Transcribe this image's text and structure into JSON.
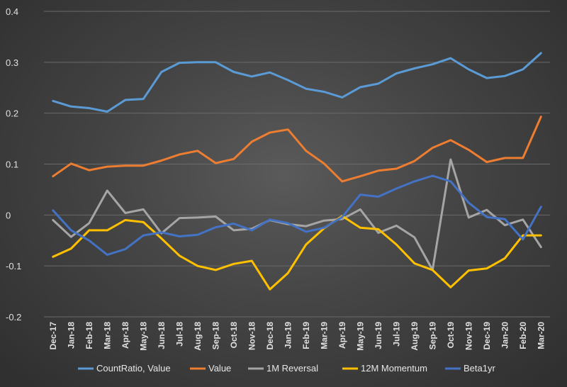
{
  "chart_data": {
    "type": "line",
    "title": "",
    "xlabel": "",
    "ylabel": "",
    "ylim": [
      -0.2,
      0.4
    ],
    "yticks": [
      -0.2,
      -0.1,
      0,
      0.1,
      0.2,
      0.3,
      0.4
    ],
    "ytick_labels": [
      "-0.2",
      "-0.1",
      "0",
      "0.1",
      "0.2",
      "0.3",
      "0.4"
    ],
    "grid": true,
    "legend": "bottom",
    "categories": [
      "Dec-17",
      "Jan-18",
      "Feb-18",
      "Mar-18",
      "Apr-18",
      "May-18",
      "Jun-18",
      "Jul-18",
      "Aug-18",
      "Sep-18",
      "Oct-18",
      "Nov-18",
      "Dec-18",
      "Jan-19",
      "Feb-19",
      "Mar-19",
      "Apr-19",
      "May-19",
      "Jun-19",
      "Jul-19",
      "Aug-19",
      "Sep-19",
      "Oct-19",
      "Nov-19",
      "Dec-19",
      "Jan-20",
      "Feb-20",
      "Mar-20"
    ],
    "series": [
      {
        "name": "CountRatio, Value",
        "color": "#5b9bd5",
        "values": [
          0.224,
          0.213,
          0.21,
          0.203,
          0.226,
          0.228,
          0.281,
          0.299,
          0.3,
          0.3,
          0.281,
          0.272,
          0.28,
          0.265,
          0.248,
          0.242,
          0.231,
          0.251,
          0.258,
          0.278,
          0.288,
          0.296,
          0.308,
          0.286,
          0.269,
          0.273,
          0.286,
          0.318
        ]
      },
      {
        "name": "Value",
        "color": "#ed7d31",
        "values": [
          0.076,
          0.101,
          0.088,
          0.095,
          0.097,
          0.097,
          0.107,
          0.119,
          0.126,
          0.102,
          0.11,
          0.144,
          0.162,
          0.168,
          0.126,
          0.101,
          0.066,
          0.076,
          0.087,
          0.091,
          0.106,
          0.132,
          0.147,
          0.128,
          0.104,
          0.112,
          0.112,
          0.193
        ]
      },
      {
        "name": "1M Reversal",
        "color": "#a5a5a5",
        "values": [
          -0.01,
          -0.043,
          -0.016,
          0.048,
          0.004,
          0.011,
          -0.036,
          -0.006,
          -0.005,
          -0.003,
          -0.03,
          -0.027,
          -0.01,
          -0.018,
          -0.022,
          -0.011,
          -0.008,
          0.011,
          -0.035,
          -0.021,
          -0.044,
          -0.108,
          0.109,
          -0.005,
          0.01,
          -0.02,
          -0.009,
          -0.063
        ]
      },
      {
        "name": "12M Momentum",
        "color": "#ffc000",
        "values": [
          -0.082,
          -0.066,
          -0.03,
          -0.03,
          -0.01,
          -0.014,
          -0.046,
          -0.08,
          -0.1,
          -0.108,
          -0.096,
          -0.09,
          -0.146,
          -0.114,
          -0.058,
          -0.026,
          -0.002,
          -0.025,
          -0.028,
          -0.058,
          -0.095,
          -0.108,
          -0.142,
          -0.109,
          -0.105,
          -0.085,
          -0.04,
          -0.04
        ]
      },
      {
        "name": "Beta1yr",
        "color": "#4472c4",
        "values": [
          0.009,
          -0.03,
          -0.05,
          -0.078,
          -0.067,
          -0.04,
          -0.034,
          -0.042,
          -0.039,
          -0.024,
          -0.017,
          -0.03,
          -0.009,
          -0.016,
          -0.033,
          -0.025,
          -0.004,
          0.04,
          0.036,
          0.052,
          0.066,
          0.077,
          0.066,
          0.024,
          -0.004,
          -0.008,
          -0.048,
          0.016
        ]
      }
    ]
  }
}
